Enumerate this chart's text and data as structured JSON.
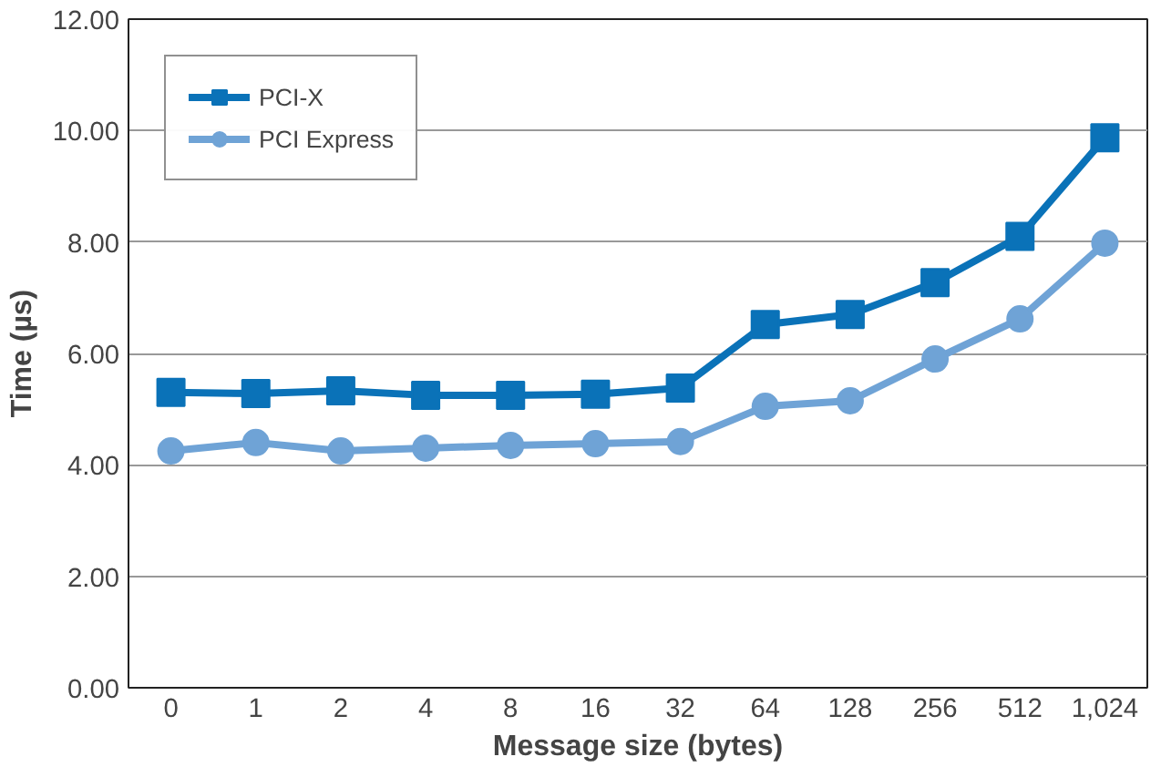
{
  "chart_data": {
    "type": "line",
    "xlabel": "Message size (bytes)",
    "ylabel": "Time (µs)",
    "categories": [
      "0",
      "1",
      "2",
      "4",
      "8",
      "16",
      "32",
      "64",
      "128",
      "256",
      "512",
      "1,024"
    ],
    "ylim": [
      0,
      12
    ],
    "yticks": [
      {
        "value": 0,
        "label": "0.00"
      },
      {
        "value": 2,
        "label": "2.00"
      },
      {
        "value": 4,
        "label": "4.00"
      },
      {
        "value": 6,
        "label": "6.00"
      },
      {
        "value": 8,
        "label": "8.00"
      },
      {
        "value": 10,
        "label": "10.00"
      },
      {
        "value": 12,
        "label": "12.00"
      }
    ],
    "grid": "y",
    "legend": "top left",
    "series": [
      {
        "name": "PCI-X",
        "color": "#0a72b8",
        "marker": "square",
        "values": [
          5.3,
          5.28,
          5.33,
          5.25,
          5.25,
          5.27,
          5.38,
          6.52,
          6.7,
          7.27,
          8.1,
          9.87
        ]
      },
      {
        "name": "PCI Express",
        "color": "#6fa3d6",
        "marker": "circle",
        "values": [
          4.25,
          4.4,
          4.25,
          4.3,
          4.35,
          4.38,
          4.42,
          5.05,
          5.15,
          5.9,
          6.62,
          7.98
        ]
      }
    ]
  }
}
